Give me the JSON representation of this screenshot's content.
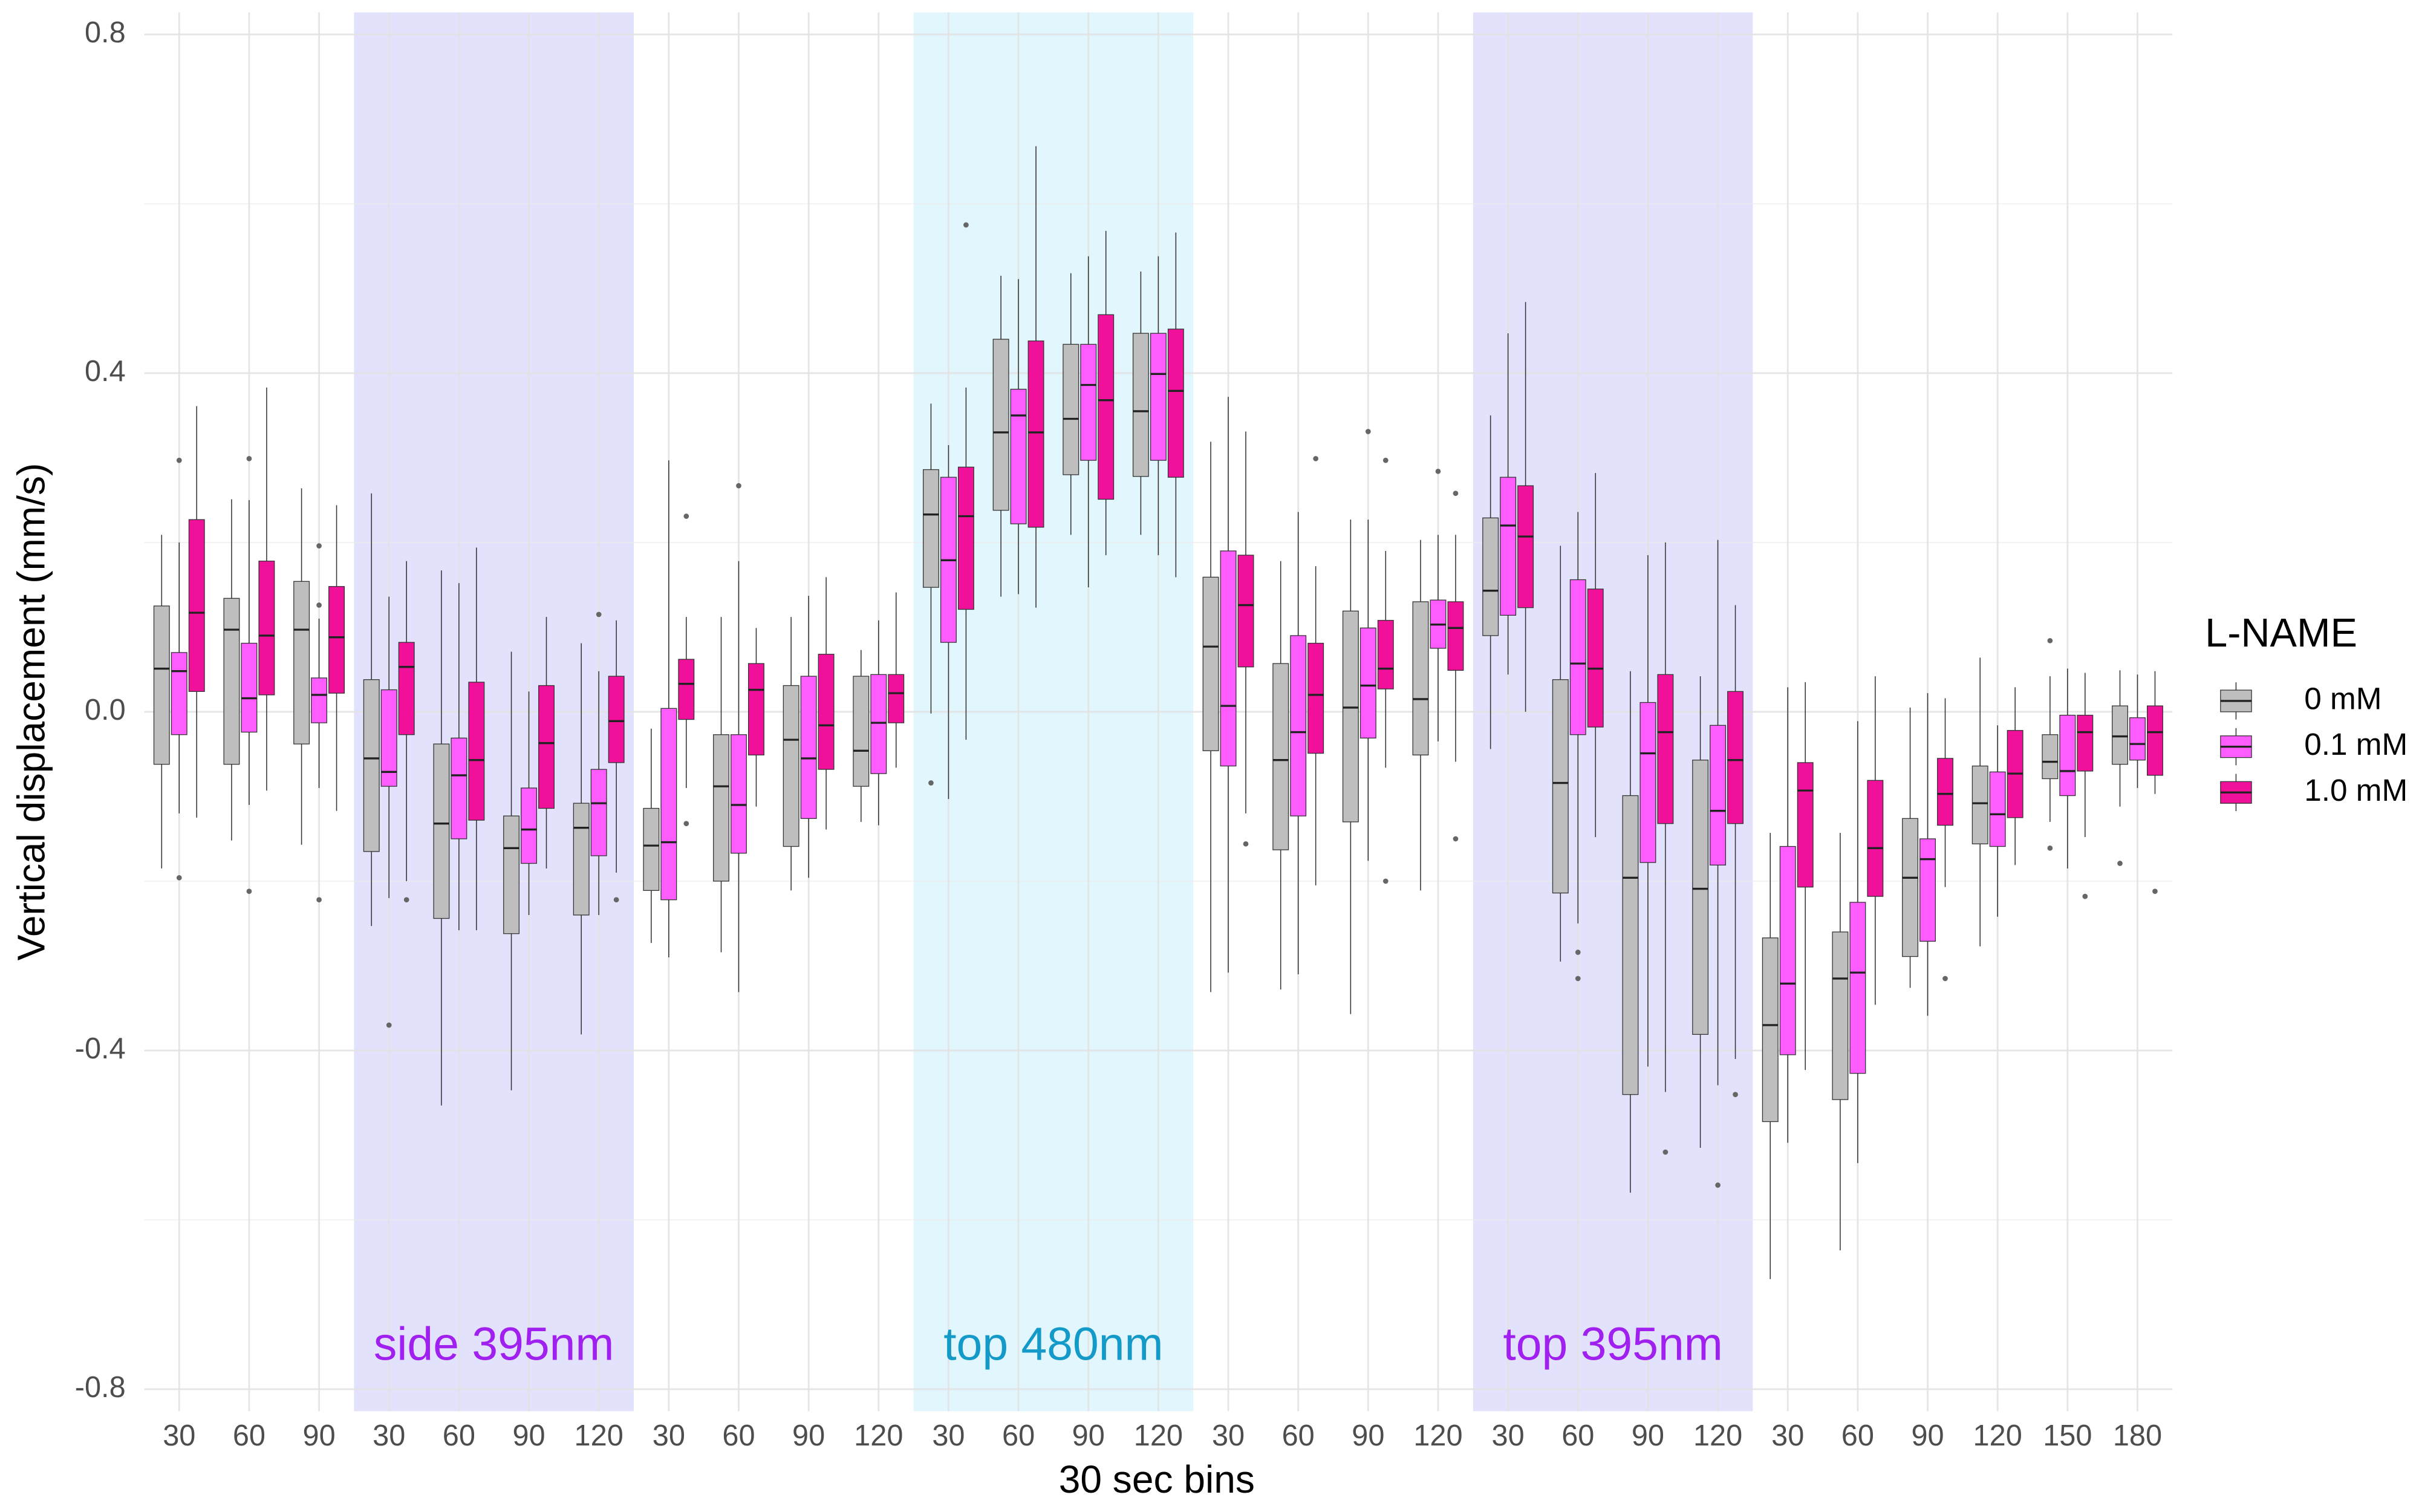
{
  "chart_data": {
    "type": "boxplot",
    "x_label": "30 sec bins",
    "y_label": "Vertical displacement (mm/s)",
    "legend_title": "L-NAME",
    "legend_position": "right",
    "grid": true,
    "categories": [
      "30",
      "60",
      "90",
      "30",
      "60",
      "90",
      "120",
      "30",
      "60",
      "90",
      "120",
      "30",
      "60",
      "90",
      "120",
      "30",
      "60",
      "90",
      "120",
      "30",
      "60",
      "90",
      "120",
      "30",
      "60",
      "90",
      "120",
      "150",
      "180"
    ],
    "ylim": [
      -0.826,
      0.826
    ],
    "yticks": [
      -0.8,
      -0.4,
      {
        "value": 0,
        "label": "0.0"
      },
      0.4,
      0.8
    ],
    "minor_yticks": [
      -0.6,
      -0.2,
      0.2,
      0.6
    ],
    "shaded_regions": [
      {
        "label": "side 395nm",
        "from": 3,
        "to": 6,
        "color": "#e2e2fd",
        "label_color": "#a020f0"
      },
      {
        "label": "top 480nm",
        "from": 11,
        "to": 14,
        "color": "#e2f6fd",
        "label_color": "#149ac8"
      },
      {
        "label": "top 395nm",
        "from": 19,
        "to": 22,
        "color": "#e2e2fd",
        "label_color": "#a020f0"
      }
    ],
    "series": [
      {
        "name": "0 mM",
        "color": "#bebebe",
        "boxes": [
          [
            -0.185,
            -0.062,
            0.051,
            0.125,
            0.209
          ],
          [
            -0.152,
            -0.062,
            0.097,
            0.134,
            0.251
          ],
          [
            -0.157,
            -0.038,
            0.097,
            0.154,
            0.264
          ],
          [
            -0.253,
            -0.165,
            -0.055,
            0.038,
            0.258
          ],
          [
            -0.465,
            -0.244,
            -0.132,
            -0.038,
            0.167
          ],
          [
            -0.447,
            -0.262,
            -0.161,
            -0.123,
            0.071
          ],
          [
            -0.381,
            -0.24,
            -0.137,
            -0.108,
            0.081
          ],
          [
            -0.273,
            -0.211,
            -0.158,
            -0.114,
            -0.02
          ],
          [
            -0.284,
            -0.2,
            -0.088,
            -0.027,
            0.112
          ],
          [
            -0.211,
            -0.159,
            -0.033,
            0.031,
            0.112
          ],
          [
            -0.13,
            -0.088,
            -0.046,
            0.042,
            0.073
          ],
          [
            -0.002,
            0.147,
            0.233,
            0.286,
            0.364
          ],
          [
            0.136,
            0.238,
            0.33,
            0.44,
            0.515
          ],
          [
            0.209,
            0.28,
            0.346,
            0.434,
            0.518
          ],
          [
            0.209,
            0.278,
            0.355,
            0.447,
            0.52
          ],
          [
            -0.331,
            -0.046,
            0.077,
            0.159,
            0.319
          ],
          [
            -0.328,
            -0.163,
            -0.057,
            0.057,
            0.178
          ],
          [
            -0.357,
            -0.13,
            0.005,
            0.119,
            0.227
          ],
          [
            -0.211,
            -0.051,
            0.015,
            0.13,
            0.203
          ],
          [
            -0.044,
            0.09,
            0.143,
            0.229,
            0.35
          ],
          [
            -0.295,
            -0.214,
            -0.084,
            0.038,
            0.196
          ],
          [
            -0.568,
            -0.452,
            -0.196,
            -0.099,
            0.048
          ],
          [
            -0.515,
            -0.381,
            -0.209,
            -0.057,
            0.042
          ],
          [
            -0.67,
            -0.484,
            -0.37,
            -0.267,
            -0.143
          ],
          [
            -0.636,
            -0.458,
            -0.315,
            -0.26,
            -0.143
          ],
          [
            -0.326,
            -0.289,
            -0.196,
            -0.126,
            0.005
          ],
          [
            -0.277,
            -0.156,
            -0.108,
            -0.064,
            0.064
          ],
          [
            -0.13,
            -0.079,
            -0.059,
            -0.027,
            0.042
          ],
          [
            -0.112,
            -0.062,
            -0.029,
            0.007,
            0.049
          ]
        ],
        "outliers": [
          [],
          [],
          [],
          [],
          [],
          [],
          [],
          [],
          [],
          [],
          [],
          [
            -0.084
          ],
          [],
          [],
          [],
          [],
          [],
          [],
          [],
          [],
          [],
          [],
          [],
          [],
          [],
          [],
          [],
          [
            0.084,
            -0.161
          ],
          [
            -0.179
          ]
        ]
      },
      {
        "name": "0.1 mM",
        "color": "#ff5cff",
        "boxes": [
          [
            -0.12,
            -0.027,
            0.048,
            0.07,
            0.2
          ],
          [
            -0.11,
            -0.024,
            0.016,
            0.081,
            0.25
          ],
          [
            -0.09,
            -0.013,
            0.02,
            0.04,
            0.11
          ],
          [
            -0.22,
            -0.088,
            -0.071,
            0.026,
            0.136
          ],
          [
            -0.258,
            -0.15,
            -0.075,
            -0.031,
            0.152
          ],
          [
            -0.24,
            -0.179,
            -0.139,
            -0.09,
            0.024
          ],
          [
            -0.24,
            -0.17,
            -0.108,
            -0.068,
            0.048
          ],
          [
            -0.29,
            -0.222,
            -0.154,
            0.004,
            0.297
          ],
          [
            -0.331,
            -0.167,
            -0.11,
            -0.027,
            0.178
          ],
          [
            -0.196,
            -0.126,
            -0.055,
            0.042,
            0.137
          ],
          [
            -0.134,
            -0.073,
            -0.013,
            0.044,
            0.108
          ],
          [
            -0.103,
            0.082,
            0.179,
            0.277,
            0.315
          ],
          [
            0.139,
            0.222,
            0.35,
            0.381,
            0.511
          ],
          [
            0.147,
            0.297,
            0.386,
            0.434,
            0.538
          ],
          [
            0.185,
            0.297,
            0.399,
            0.447,
            0.538
          ],
          [
            -0.308,
            -0.064,
            0.007,
            0.19,
            0.372
          ],
          [
            -0.31,
            -0.123,
            -0.024,
            0.09,
            0.236
          ],
          [
            -0.176,
            -0.031,
            0.031,
            0.099,
            0.227
          ],
          [
            -0.035,
            0.075,
            0.103,
            0.132,
            0.209
          ],
          [
            0.044,
            0.114,
            0.22,
            0.277,
            0.447
          ],
          [
            -0.25,
            -0.027,
            0.057,
            0.156,
            0.236
          ],
          [
            -0.419,
            -0.178,
            -0.049,
            0.011,
            0.185
          ],
          [
            -0.441,
            -0.181,
            -0.117,
            -0.016,
            0.203
          ],
          [
            -0.509,
            -0.405,
            -0.321,
            -0.159,
            0.029
          ],
          [
            -0.533,
            -0.427,
            -0.308,
            -0.225,
            -0.011
          ],
          [
            -0.359,
            -0.271,
            -0.174,
            -0.15,
            0.022
          ],
          [
            -0.242,
            -0.159,
            -0.121,
            -0.071,
            -0.016
          ],
          [
            -0.185,
            -0.099,
            -0.07,
            -0.004,
            0.051
          ],
          [
            -0.09,
            -0.057,
            -0.038,
            -0.007,
            0.044
          ]
        ],
        "outliers": [
          [
            0.297,
            -0.196
          ],
          [
            0.299,
            -0.212
          ],
          [
            0.196,
            0.126,
            -0.222
          ],
          [
            -0.37
          ],
          [],
          [],
          [
            0.115
          ],
          [],
          [
            0.267
          ],
          [],
          [],
          [],
          [],
          [],
          [],
          [],
          [],
          [
            0.331
          ],
          [
            0.284
          ],
          [],
          [
            -0.284,
            -0.315
          ],
          [],
          [
            -0.559
          ],
          [],
          [],
          [],
          [],
          [],
          []
        ]
      },
      {
        "name": "1.0 mM",
        "color": "#f0109a",
        "boxes": [
          [
            -0.125,
            0.024,
            0.117,
            0.227,
            0.361
          ],
          [
            -0.093,
            0.02,
            0.09,
            0.178,
            0.383
          ],
          [
            -0.117,
            0.022,
            0.088,
            0.148,
            0.244
          ],
          [
            -0.2,
            -0.027,
            0.053,
            0.082,
            0.178
          ],
          [
            -0.258,
            -0.128,
            -0.057,
            0.035,
            0.194
          ],
          [
            -0.185,
            -0.114,
            -0.037,
            0.031,
            0.112
          ],
          [
            -0.19,
            -0.06,
            -0.011,
            0.042,
            0.108
          ],
          [
            -0.09,
            -0.009,
            0.033,
            0.062,
            0.112
          ],
          [
            -0.112,
            -0.051,
            0.026,
            0.057,
            0.099
          ],
          [
            -0.139,
            -0.068,
            -0.016,
            0.068,
            0.159
          ],
          [
            -0.066,
            -0.013,
            0.022,
            0.044,
            0.141
          ],
          [
            -0.033,
            0.121,
            0.231,
            0.289,
            0.383
          ],
          [
            0.123,
            0.218,
            0.33,
            0.438,
            0.668
          ],
          [
            0.185,
            0.251,
            0.368,
            0.469,
            0.568
          ],
          [
            0.159,
            0.277,
            0.379,
            0.452,
            0.566
          ],
          [
            -0.12,
            0.053,
            0.126,
            0.185,
            0.331
          ],
          [
            -0.205,
            -0.049,
            0.02,
            0.081,
            0.172
          ],
          [
            -0.066,
            0.027,
            0.051,
            0.108,
            0.19
          ],
          [
            -0.059,
            0.049,
            0.099,
            0.13,
            0.209
          ],
          [
            0,
            0.123,
            0.207,
            0.267,
            0.484
          ],
          [
            -0.148,
            -0.018,
            0.051,
            0.145,
            0.282
          ],
          [
            -0.449,
            -0.132,
            -0.024,
            0.044,
            0.2
          ],
          [
            -0.41,
            -0.132,
            -0.057,
            0.024,
            0.126
          ],
          [
            -0.423,
            -0.207,
            -0.093,
            -0.06,
            0.035
          ],
          [
            -0.346,
            -0.218,
            -0.161,
            -0.081,
            0.042
          ],
          [
            -0.207,
            -0.134,
            -0.097,
            -0.055,
            0.016
          ],
          [
            -0.181,
            -0.125,
            -0.073,
            -0.022,
            0.029
          ],
          [
            -0.148,
            -0.07,
            -0.024,
            -0.004,
            0.046
          ],
          [
            -0.097,
            -0.075,
            -0.024,
            0.007,
            0.048
          ]
        ],
        "outliers": [
          [],
          [],
          [],
          [
            -0.222
          ],
          [],
          [],
          [
            -0.222
          ],
          [
            0.231,
            -0.132
          ],
          [],
          [],
          [],
          [
            0.575
          ],
          [],
          [],
          [],
          [
            -0.156
          ],
          [
            0.299
          ],
          [
            0.297,
            -0.2
          ],
          [
            0.258,
            -0.15
          ],
          [],
          [],
          [
            -0.52
          ],
          [
            -0.452
          ],
          [],
          [],
          [
            -0.315
          ],
          [],
          [
            -0.218
          ],
          [
            -0.212
          ]
        ]
      }
    ]
  }
}
